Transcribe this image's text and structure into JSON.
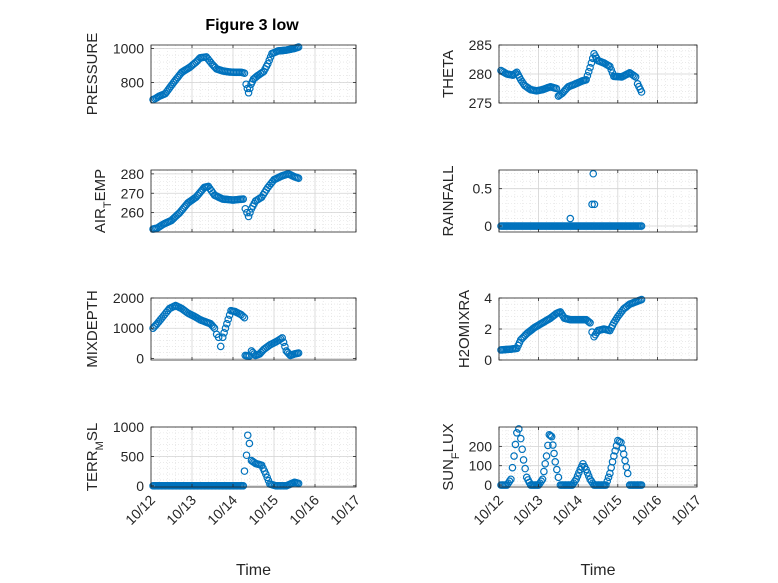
{
  "window": {
    "title": "Figure 3 low"
  },
  "figure": {
    "title": "Figure 3 low",
    "marker_color": "#0072BD"
  },
  "chart_data": [
    {
      "type": "scatter",
      "ylabel": "PRESSURE",
      "ylim": [
        680,
        1020
      ],
      "yticks": [
        800,
        1000
      ],
      "xlim": [
        0,
        5
      ],
      "xticks": [
        0,
        1,
        2,
        3,
        4,
        5
      ],
      "show_xticklabels": false,
      "grid": true,
      "keyframes": [
        [
          0.05,
          700
        ],
        [
          0.1,
          705
        ],
        [
          0.2,
          720
        ],
        [
          0.35,
          735
        ],
        [
          0.55,
          800
        ],
        [
          0.75,
          860
        ],
        [
          0.95,
          890
        ],
        [
          1.1,
          920
        ],
        [
          1.2,
          945
        ],
        [
          1.35,
          950
        ],
        [
          1.5,
          905
        ],
        [
          1.6,
          880
        ],
        [
          1.75,
          868
        ],
        [
          1.9,
          862
        ],
        [
          2.05,
          860
        ],
        [
          2.2,
          860
        ],
        [
          2.28,
          855
        ],
        [
          2.32,
          790
        ],
        [
          2.38,
          740
        ],
        [
          2.44,
          790
        ],
        [
          2.5,
          820
        ],
        [
          2.6,
          840
        ],
        [
          2.75,
          865
        ],
        [
          2.85,
          910
        ],
        [
          2.95,
          970
        ],
        [
          3.1,
          985
        ],
        [
          3.3,
          990
        ],
        [
          3.5,
          1000
        ],
        [
          3.6,
          1008
        ]
      ],
      "step": 0.034
    },
    {
      "type": "scatter",
      "ylabel": "THETA",
      "ylim": [
        275,
        285
      ],
      "yticks": [
        275,
        280,
        285
      ],
      "xlim": [
        0,
        5
      ],
      "xticks": [
        0,
        1,
        2,
        3,
        4,
        5
      ],
      "show_xticklabels": false,
      "grid": true,
      "keyframes": [
        [
          0.05,
          280.6
        ],
        [
          0.2,
          280
        ],
        [
          0.35,
          279.8
        ],
        [
          0.45,
          280.3
        ],
        [
          0.55,
          279
        ],
        [
          0.65,
          278
        ],
        [
          0.8,
          277.3
        ],
        [
          0.95,
          277.1
        ],
        [
          1.1,
          277.3
        ],
        [
          1.3,
          277.8
        ],
        [
          1.45,
          277.5
        ],
        [
          1.5,
          276.2
        ],
        [
          1.6,
          276.7
        ],
        [
          1.75,
          277.8
        ],
        [
          1.9,
          278.2
        ],
        [
          2.1,
          278.8
        ],
        [
          2.2,
          279
        ],
        [
          2.3,
          281.1
        ],
        [
          2.4,
          283.5
        ],
        [
          2.5,
          282.3
        ],
        [
          2.65,
          281.9
        ],
        [
          2.8,
          281.3
        ],
        [
          2.9,
          279.6
        ],
        [
          3.1,
          279.5
        ],
        [
          3.3,
          280.2
        ],
        [
          3.45,
          279.5
        ],
        [
          3.5,
          278.3
        ],
        [
          3.6,
          276.9
        ]
      ],
      "step": 0.034
    },
    {
      "type": "scatter",
      "ylabel": "AIR_TEMP",
      "ylim": [
        250,
        282
      ],
      "yticks": [
        260,
        270,
        280
      ],
      "xlim": [
        0,
        5
      ],
      "xticks": [
        0,
        1,
        2,
        3,
        4,
        5
      ],
      "show_xticklabels": false,
      "grid": true,
      "keyframes": [
        [
          0.05,
          251.5
        ],
        [
          0.15,
          252
        ],
        [
          0.3,
          254
        ],
        [
          0.5,
          256
        ],
        [
          0.7,
          260
        ],
        [
          0.9,
          265
        ],
        [
          1.1,
          268
        ],
        [
          1.3,
          273
        ],
        [
          1.4,
          273.5
        ],
        [
          1.55,
          269
        ],
        [
          1.75,
          267
        ],
        [
          2.0,
          266.5
        ],
        [
          2.25,
          267
        ],
        [
          2.3,
          262
        ],
        [
          2.38,
          258
        ],
        [
          2.45,
          262
        ],
        [
          2.55,
          266
        ],
        [
          2.7,
          268
        ],
        [
          2.85,
          273
        ],
        [
          3.0,
          277
        ],
        [
          3.2,
          279
        ],
        [
          3.35,
          280
        ],
        [
          3.5,
          278.5
        ],
        [
          3.6,
          277.8
        ]
      ],
      "step": 0.034
    },
    {
      "type": "scatter",
      "ylabel": "RAINFALL",
      "ylim": [
        -0.08,
        0.75
      ],
      "yticks": [
        0,
        0.5
      ],
      "xlim": [
        0,
        5
      ],
      "xticks": [
        0,
        1,
        2,
        3,
        4,
        5
      ],
      "show_xticklabels": false,
      "grid": true,
      "keyframes": [
        [
          0.05,
          0
        ],
        [
          2.3,
          0
        ],
        [
          2.4,
          0
        ],
        [
          3.6,
          0
        ]
      ],
      "step": 0.034,
      "extra": [
        [
          1.8,
          0.1
        ],
        [
          2.35,
          0.29
        ],
        [
          2.38,
          0.7
        ],
        [
          2.41,
          0.29
        ]
      ]
    },
    {
      "type": "scatter",
      "ylabel": "MIXDEPTH",
      "ylim": [
        -50,
        2000
      ],
      "yticks": [
        0,
        1000,
        2000
      ],
      "xlim": [
        0,
        5
      ],
      "xticks": [
        0,
        1,
        2,
        3,
        4,
        5
      ],
      "show_xticklabels": false,
      "grid": true,
      "keyframes": [
        [
          0.05,
          1000
        ],
        [
          0.15,
          1150
        ],
        [
          0.3,
          1400
        ],
        [
          0.45,
          1650
        ],
        [
          0.6,
          1750
        ],
        [
          0.75,
          1650
        ],
        [
          0.9,
          1500
        ],
        [
          1.05,
          1400
        ],
        [
          1.2,
          1280
        ],
        [
          1.35,
          1200
        ],
        [
          1.45,
          1150
        ],
        [
          1.55,
          1000
        ],
        [
          1.6,
          800
        ],
        [
          1.65,
          700
        ],
        [
          1.7,
          400
        ],
        [
          1.75,
          700
        ],
        [
          1.85,
          1150
        ],
        [
          1.95,
          1580
        ],
        [
          2.05,
          1550
        ],
        [
          2.2,
          1450
        ],
        [
          2.28,
          1350
        ],
        [
          2.3,
          100
        ],
        [
          2.4,
          80
        ],
        [
          2.45,
          250
        ],
        [
          2.55,
          100
        ],
        [
          2.65,
          150
        ],
        [
          2.75,
          300
        ],
        [
          2.9,
          450
        ],
        [
          3.05,
          550
        ],
        [
          3.2,
          680
        ],
        [
          3.3,
          250
        ],
        [
          3.4,
          100
        ],
        [
          3.5,
          150
        ],
        [
          3.6,
          180
        ]
      ],
      "step": 0.034
    },
    {
      "type": "scatter",
      "ylabel": "H2OMIXRA",
      "ylim": [
        0,
        4
      ],
      "yticks": [
        0,
        2,
        4
      ],
      "xlim": [
        0,
        5
      ],
      "xticks": [
        0,
        1,
        2,
        3,
        4,
        5
      ],
      "show_xticklabels": false,
      "grid": true,
      "keyframes": [
        [
          0.05,
          0.65
        ],
        [
          0.3,
          0.7
        ],
        [
          0.45,
          0.75
        ],
        [
          0.55,
          1.3
        ],
        [
          0.7,
          1.7
        ],
        [
          0.9,
          2.1
        ],
        [
          1.1,
          2.4
        ],
        [
          1.3,
          2.7
        ],
        [
          1.45,
          3.0
        ],
        [
          1.55,
          3.1
        ],
        [
          1.65,
          2.7
        ],
        [
          1.8,
          2.6
        ],
        [
          2.0,
          2.6
        ],
        [
          2.2,
          2.6
        ],
        [
          2.3,
          2.4
        ],
        [
          2.35,
          1.8
        ],
        [
          2.4,
          1.5
        ],
        [
          2.5,
          1.9
        ],
        [
          2.65,
          2.0
        ],
        [
          2.8,
          1.9
        ],
        [
          2.9,
          2.4
        ],
        [
          3.0,
          2.8
        ],
        [
          3.15,
          3.3
        ],
        [
          3.3,
          3.6
        ],
        [
          3.45,
          3.75
        ],
        [
          3.6,
          3.9
        ]
      ],
      "step": 0.034
    },
    {
      "type": "scatter",
      "ylabel": "TERR_MSL",
      "ylim": [
        -20,
        1000
      ],
      "yticks": [
        0,
        500,
        1000
      ],
      "xlim": [
        0,
        5
      ],
      "xticks": [
        0,
        1,
        2,
        3,
        4,
        5
      ],
      "xticklabels": [
        "10/12",
        "10/13",
        "10/14",
        "10/15",
        "10/16",
        "10/17"
      ],
      "show_xticklabels": true,
      "xlabel": "Time",
      "grid": true,
      "keyframes": [
        [
          0.05,
          0
        ],
        [
          2.25,
          0
        ],
        [
          2.28,
          250
        ],
        [
          2.33,
          520
        ],
        [
          2.36,
          860
        ],
        [
          2.4,
          720
        ],
        [
          2.45,
          430
        ],
        [
          2.55,
          380
        ],
        [
          2.7,
          350
        ],
        [
          2.8,
          200
        ],
        [
          2.9,
          30
        ],
        [
          3.05,
          0
        ],
        [
          3.3,
          0
        ],
        [
          3.5,
          60
        ],
        [
          3.6,
          40
        ]
      ],
      "step": 0.034
    },
    {
      "type": "scatter",
      "ylabel": "SUN_FLUX",
      "ylim": [
        -10,
        300
      ],
      "yticks": [
        0,
        100,
        200
      ],
      "xlim": [
        0,
        5
      ],
      "xticks": [
        0,
        1,
        2,
        3,
        4,
        5
      ],
      "xticklabels": [
        "10/12",
        "10/13",
        "10/14",
        "10/15",
        "10/16",
        "10/17"
      ],
      "show_xticklabels": true,
      "xlabel": "Time",
      "grid": true,
      "keyframes": [
        [
          0.05,
          0
        ],
        [
          0.2,
          0
        ],
        [
          0.3,
          30
        ],
        [
          0.38,
          150
        ],
        [
          0.45,
          270
        ],
        [
          0.5,
          290
        ],
        [
          0.55,
          240
        ],
        [
          0.62,
          130
        ],
        [
          0.7,
          40
        ],
        [
          0.8,
          0
        ],
        [
          1.0,
          0
        ],
        [
          1.1,
          30
        ],
        [
          1.2,
          150
        ],
        [
          1.27,
          260
        ],
        [
          1.33,
          250
        ],
        [
          1.42,
          120
        ],
        [
          1.5,
          40
        ],
        [
          1.55,
          0
        ],
        [
          1.85,
          0
        ],
        [
          1.95,
          30
        ],
        [
          2.05,
          80
        ],
        [
          2.12,
          110
        ],
        [
          2.2,
          80
        ],
        [
          2.3,
          30
        ],
        [
          2.4,
          0
        ],
        [
          2.7,
          0
        ],
        [
          2.8,
          60
        ],
        [
          2.9,
          150
        ],
        [
          3.0,
          230
        ],
        [
          3.08,
          220
        ],
        [
          3.15,
          160
        ],
        [
          3.25,
          60
        ],
        [
          3.3,
          0
        ],
        [
          3.6,
          0
        ]
      ],
      "step": 0.034
    }
  ]
}
